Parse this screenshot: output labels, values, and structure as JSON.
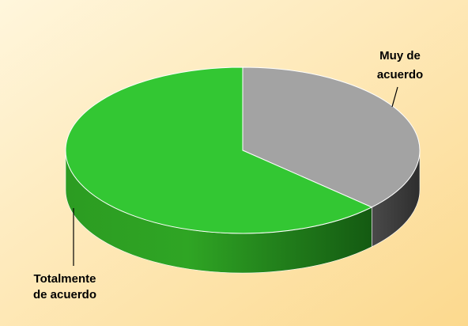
{
  "chart_data": {
    "type": "pie",
    "style": "3d",
    "slices": [
      {
        "label": "Muy de acuerdo",
        "label_lines": [
          "Muy de",
          "acuerdo"
        ],
        "value": 37,
        "color": "#a3a3a3",
        "side_color": "#3f3f3f"
      },
      {
        "label": "Totalmente de acuerdo",
        "label_lines": [
          "Totalmente",
          "de acuerdo"
        ],
        "value": 63,
        "color": "#33c733",
        "side_color": "#2a9a1f"
      }
    ],
    "legend": "none",
    "background": {
      "from": "#fff6dc",
      "to": "#fcd98e"
    }
  }
}
